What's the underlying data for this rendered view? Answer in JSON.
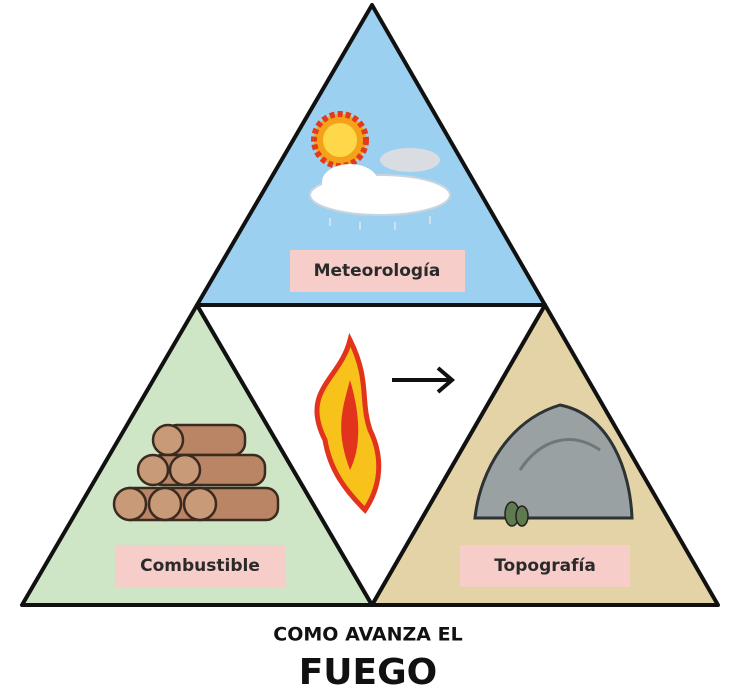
{
  "diagram": {
    "sections": [
      {
        "label": "Meteorología"
      },
      {
        "label": "Combustible"
      },
      {
        "label": "Topografía"
      }
    ],
    "caption": {
      "line1": "COMO AVANZA EL",
      "line2": "FUEGO"
    }
  }
}
